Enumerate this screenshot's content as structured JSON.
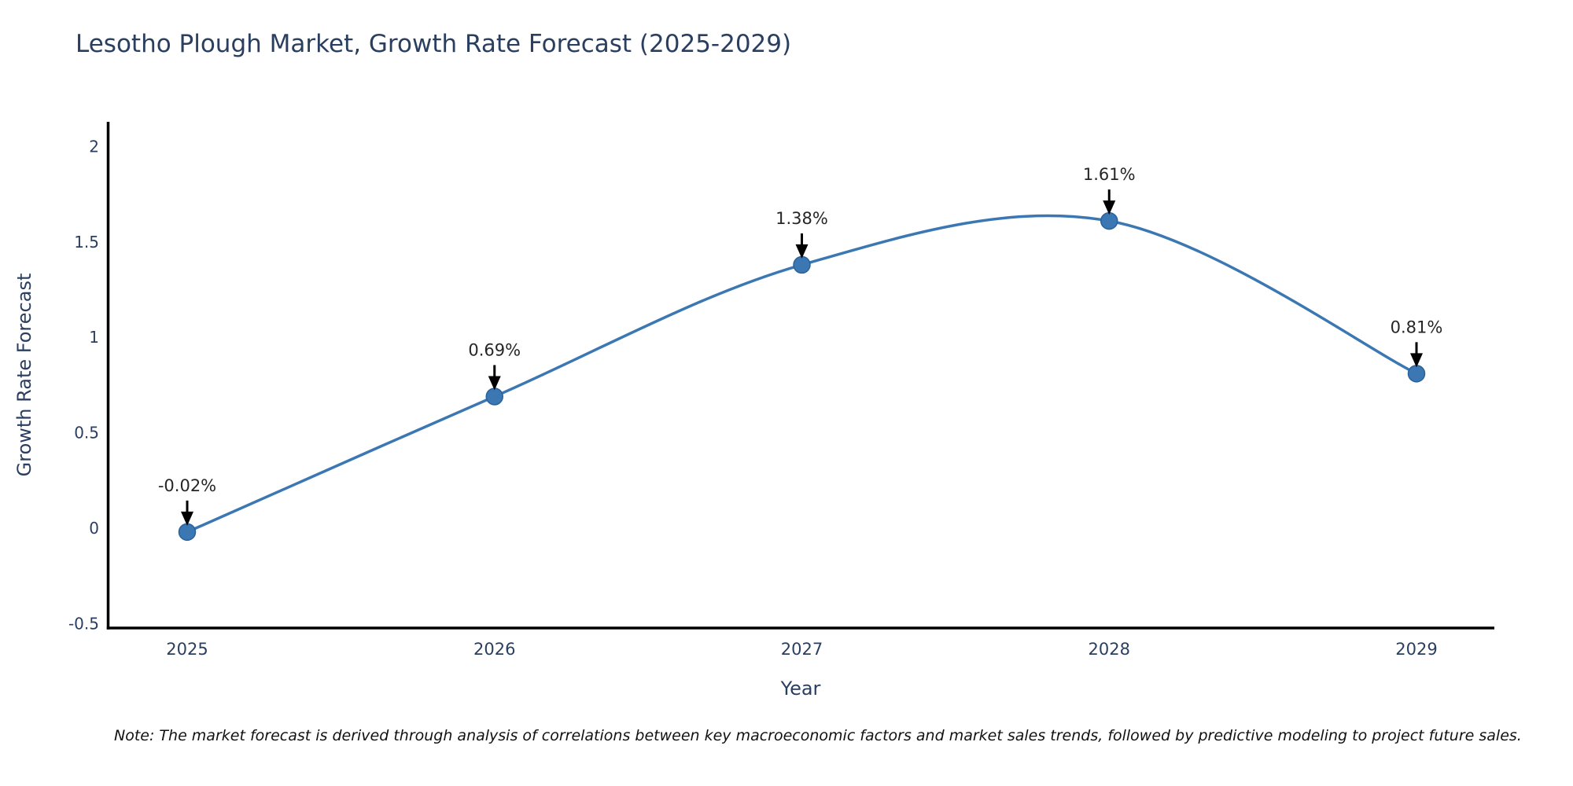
{
  "page": {
    "background_color": "#ffffff"
  },
  "chart_data": {
    "type": "line",
    "title": "Lesotho Plough Market, Growth Rate Forecast (2025-2029)",
    "xlabel": "Year",
    "ylabel": "Growth Rate Forecast",
    "categories": [
      "2025",
      "2026",
      "2027",
      "2028",
      "2029"
    ],
    "x": [
      2025,
      2026,
      2027,
      2028,
      2029
    ],
    "values": [
      -0.02,
      0.69,
      1.38,
      1.61,
      0.81
    ],
    "point_labels": [
      "-0.02%",
      "0.69%",
      "1.38%",
      "1.61%",
      "0.81%"
    ],
    "series_name": "Growth Rate Forecast",
    "line_shape": "spline",
    "grid": false,
    "legend": false,
    "ylim": [
      -0.5,
      2
    ],
    "y_ticks": [
      {
        "label": "2",
        "value": 2
      },
      {
        "label": "1.5",
        "value": 1.5
      },
      {
        "label": "1",
        "value": 1
      },
      {
        "label": "0.5",
        "value": 0.5
      },
      {
        "label": "0",
        "value": 0
      },
      {
        "label": "-0.5",
        "value": -0.5
      }
    ],
    "colors": {
      "line": "#3b78b3",
      "marker_fill": "#3b78b3",
      "marker_edge": "#2a619b",
      "axis_line": "#000000",
      "tick_label": "#2a3f5f",
      "title": "#2a3f5f",
      "annotation_text": "#262626",
      "annotation_arrow": "#000000"
    }
  },
  "note": {
    "text": "Note: The market forecast is derived through analysis of correlations between key macroeconomic factors and market sales trends, followed by predictive modeling to project future sales."
  }
}
